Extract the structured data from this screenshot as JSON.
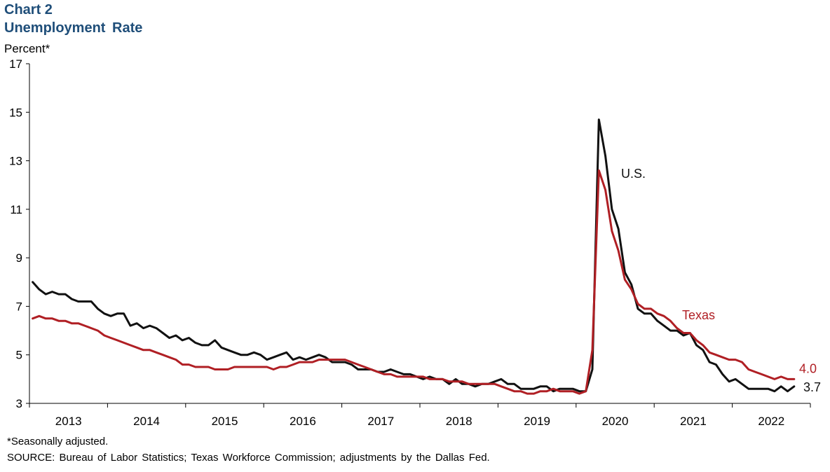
{
  "chart_number": "Chart 2",
  "title": "Unemployment  Rate",
  "footnote": "*Seasonally adjusted.",
  "source": "SOURCE: Bureau of Labor Statistics; Texas Workforce Commission; adjustments by the Dallas Fed.",
  "colors": {
    "us": "#111111",
    "texas": "#b01f24",
    "title": "#1f4e79",
    "axis": "#000000"
  },
  "chart_data": {
    "type": "line",
    "title": "Unemployment  Rate",
    "ylabel": "Percent*",
    "xlabel": "",
    "ylim": [
      3,
      17
    ],
    "yticks": [
      3,
      5,
      7,
      9,
      11,
      13,
      15,
      17
    ],
    "x_period": "monthly, Jan 2013 to Oct 2022",
    "x_tick_labels": [
      "2013",
      "2014",
      "2015",
      "2016",
      "2017",
      "2018",
      "2019",
      "2020",
      "2021",
      "2022"
    ],
    "grid": false,
    "series": [
      {
        "name": "U.S.",
        "color": "#111111",
        "end_label": "3.7",
        "values": [
          8.0,
          7.7,
          7.5,
          7.6,
          7.5,
          7.5,
          7.3,
          7.2,
          7.2,
          7.2,
          6.9,
          6.7,
          6.6,
          6.7,
          6.7,
          6.2,
          6.3,
          6.1,
          6.2,
          6.1,
          5.9,
          5.7,
          5.8,
          5.6,
          5.7,
          5.5,
          5.4,
          5.4,
          5.6,
          5.3,
          5.2,
          5.1,
          5.0,
          5.0,
          5.1,
          5.0,
          4.8,
          4.9,
          5.0,
          5.1,
          4.8,
          4.9,
          4.8,
          4.9,
          5.0,
          4.9,
          4.7,
          4.7,
          4.7,
          4.6,
          4.4,
          4.4,
          4.4,
          4.3,
          4.3,
          4.4,
          4.3,
          4.2,
          4.2,
          4.1,
          4.0,
          4.1,
          4.0,
          4.0,
          3.8,
          4.0,
          3.8,
          3.8,
          3.7,
          3.8,
          3.8,
          3.9,
          4.0,
          3.8,
          3.8,
          3.6,
          3.6,
          3.6,
          3.7,
          3.7,
          3.5,
          3.6,
          3.6,
          3.6,
          3.5,
          3.5,
          4.4,
          14.7,
          13.2,
          11.0,
          10.2,
          8.4,
          7.9,
          6.9,
          6.7,
          6.7,
          6.4,
          6.2,
          6.0,
          6.0,
          5.8,
          5.9,
          5.4,
          5.2,
          4.7,
          4.6,
          4.2,
          3.9,
          4.0,
          3.8,
          3.6,
          3.6,
          3.6,
          3.6,
          3.5,
          3.7,
          3.5,
          3.7
        ]
      },
      {
        "name": "Texas",
        "color": "#b01f24",
        "end_label": "4.0",
        "values": [
          6.5,
          6.6,
          6.5,
          6.5,
          6.4,
          6.4,
          6.3,
          6.3,
          6.2,
          6.1,
          6.0,
          5.8,
          5.7,
          5.6,
          5.5,
          5.4,
          5.3,
          5.2,
          5.2,
          5.1,
          5.0,
          4.9,
          4.8,
          4.6,
          4.6,
          4.5,
          4.5,
          4.5,
          4.4,
          4.4,
          4.4,
          4.5,
          4.5,
          4.5,
          4.5,
          4.5,
          4.5,
          4.4,
          4.5,
          4.5,
          4.6,
          4.7,
          4.7,
          4.7,
          4.8,
          4.8,
          4.8,
          4.8,
          4.8,
          4.7,
          4.6,
          4.5,
          4.4,
          4.3,
          4.2,
          4.2,
          4.1,
          4.1,
          4.1,
          4.1,
          4.1,
          4.0,
          4.0,
          4.0,
          3.9,
          3.9,
          3.9,
          3.8,
          3.8,
          3.8,
          3.8,
          3.8,
          3.7,
          3.6,
          3.5,
          3.5,
          3.4,
          3.4,
          3.5,
          3.5,
          3.6,
          3.5,
          3.5,
          3.5,
          3.4,
          3.5,
          5.2,
          12.6,
          11.8,
          10.1,
          9.3,
          8.1,
          7.7,
          7.1,
          6.9,
          6.9,
          6.7,
          6.6,
          6.4,
          6.1,
          5.9,
          5.9,
          5.6,
          5.4,
          5.1,
          5.0,
          4.9,
          4.8,
          4.8,
          4.7,
          4.4,
          4.3,
          4.2,
          4.1,
          4.0,
          4.1,
          4.0,
          4.0
        ]
      }
    ],
    "annotations": [
      {
        "text": "U.S.",
        "series": "U.S."
      },
      {
        "text": "Texas",
        "series": "Texas"
      }
    ]
  }
}
